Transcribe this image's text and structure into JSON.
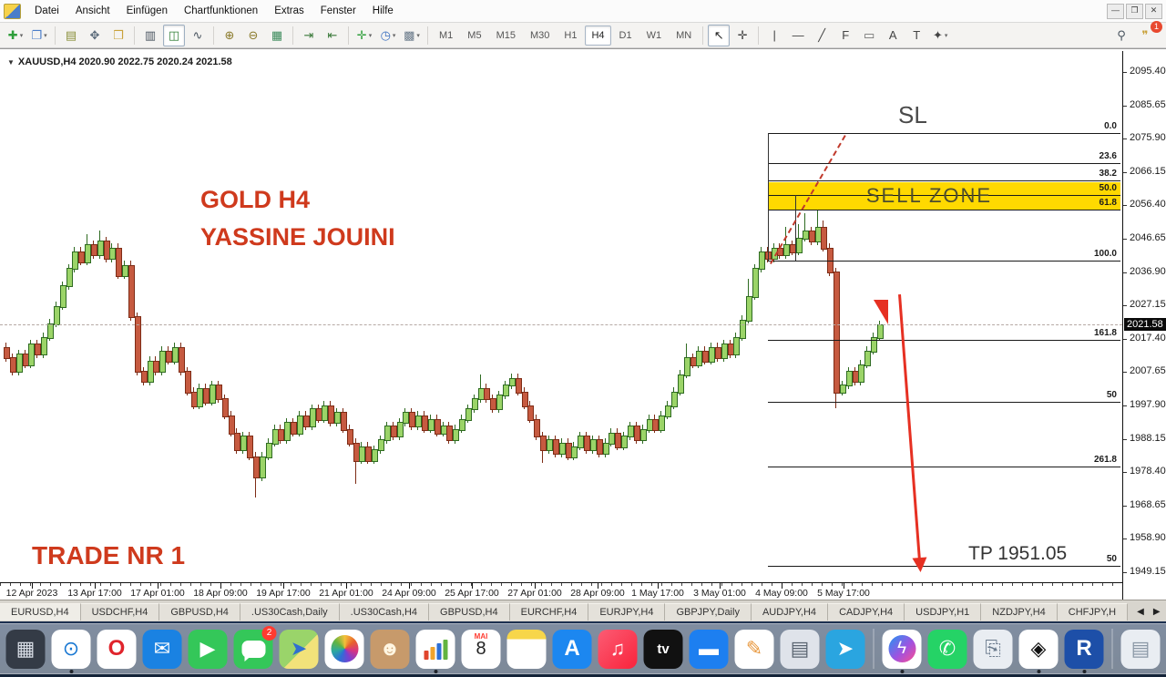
{
  "app": {
    "window_controls": [
      {
        "name": "minimize",
        "glyph": "—"
      },
      {
        "name": "restore",
        "glyph": "❐"
      },
      {
        "name": "close",
        "glyph": "✕"
      }
    ]
  },
  "menu": {
    "items": [
      "Datei",
      "Ansicht",
      "Einfügen",
      "Chartfunktionen",
      "Extras",
      "Fenster",
      "Hilfe"
    ]
  },
  "toolbar": {
    "buttons": [
      {
        "name": "new-chart",
        "glyph": "✚",
        "color": "#2e9e3a",
        "dd": true
      },
      {
        "name": "profiles",
        "glyph": "❐",
        "color": "#4a7dc9",
        "dd": true
      },
      {
        "sep": true
      },
      {
        "name": "market-watch",
        "glyph": "▤",
        "color": "#8a8f3a"
      },
      {
        "name": "navigator",
        "glyph": "✥",
        "color": "#5a6a7a"
      },
      {
        "name": "terminal",
        "glyph": "❒",
        "color": "#c9a23a"
      },
      {
        "sep": true
      },
      {
        "name": "bar-chart-mode",
        "glyph": "▥",
        "color": "#4a5560"
      },
      {
        "name": "candlestick-mode",
        "glyph": "◫",
        "color": "#2e7d32",
        "active": true
      },
      {
        "name": "line-chart-mode",
        "glyph": "∿",
        "color": "#4a5560"
      },
      {
        "sep": true
      },
      {
        "name": "zoom-in",
        "glyph": "⊕",
        "color": "#8a7a2a"
      },
      {
        "name": "zoom-out",
        "glyph": "⊖",
        "color": "#8a7a2a"
      },
      {
        "name": "tile-windows",
        "glyph": "▦",
        "color": "#3a8a5a"
      },
      {
        "sep": true
      },
      {
        "name": "auto-scroll",
        "glyph": "⇥",
        "color": "#3a7a3a"
      },
      {
        "name": "chart-shift",
        "glyph": "⇤",
        "color": "#3a7a3a"
      },
      {
        "sep": true
      },
      {
        "name": "indicators",
        "glyph": "✛",
        "color": "#2e9e3a",
        "dd": true
      },
      {
        "name": "periods",
        "glyph": "◷",
        "color": "#3a6fbf",
        "dd": true
      },
      {
        "name": "templates",
        "glyph": "▩",
        "color": "#6a7a8a",
        "dd": true
      },
      {
        "sep": true
      }
    ],
    "timeframes": [
      {
        "label": "M1"
      },
      {
        "label": "M5"
      },
      {
        "label": "M15"
      },
      {
        "label": "M30"
      },
      {
        "label": "H1"
      },
      {
        "label": "H4",
        "active": true
      },
      {
        "label": "D1"
      },
      {
        "label": "W1"
      },
      {
        "label": "MN"
      }
    ],
    "tools": [
      {
        "name": "cursor",
        "glyph": "↖",
        "color": "#222",
        "active": true
      },
      {
        "name": "crosshair",
        "glyph": "✛",
        "color": "#444"
      },
      {
        "sep": true
      },
      {
        "name": "vertical-line",
        "glyph": "|",
        "color": "#444"
      },
      {
        "name": "horizontal-line",
        "glyph": "—",
        "color": "#444"
      },
      {
        "name": "trendline",
        "glyph": "╱",
        "color": "#444"
      },
      {
        "name": "fibonacci",
        "glyph": "F",
        "color": "#444"
      },
      {
        "name": "label-object",
        "glyph": "▭",
        "color": "#666"
      },
      {
        "name": "text",
        "glyph": "A",
        "color": "#444"
      },
      {
        "name": "text-label",
        "glyph": "T",
        "color": "#444"
      },
      {
        "name": "arrow-objects",
        "glyph": "✦",
        "color": "#444",
        "dd": true
      }
    ],
    "search_glyph": "⚲",
    "chat_glyph": "❞",
    "chat_badge": "1"
  },
  "chart": {
    "symbol_line": "XAUUSD,H4  2020.90 2022.75 2020.24 2021.58",
    "price_badge": "2021.58",
    "annotations": {
      "title_line1": "GOLD H4",
      "title_line2": "YASSINE JOUINI",
      "trade_label": "TRADE NR 1",
      "sl_label": "SL",
      "tp_label": "TP 1951.05",
      "sell_zone_label": "SELL ZONE"
    },
    "colors": {
      "bull_fill": "#9bd468",
      "bull_border": "#2f6b22",
      "bear_fill": "#c65a40",
      "bear_border": "#7e2c16",
      "sell_zone": "#ffd900",
      "annotation_red": "#cf3a1d",
      "arrow_red": "#e63022"
    }
  },
  "chart_data": {
    "type": "candlestick",
    "title": "XAUUSD,H4",
    "current_bid": 2021.58,
    "ohlc_header": {
      "open": 2020.9,
      "high": 2022.75,
      "low": 2020.24,
      "close": 2021.58
    },
    "y_axis": {
      "top_label_price": 2095.4,
      "bottom_label_price": 1949.15,
      "step": 9.75,
      "labels": [
        "2095.40",
        "2085.65",
        "2075.90",
        "2066.15",
        "2056.40",
        "2046.65",
        "2036.90",
        "2027.15",
        "2017.40",
        "2007.65",
        "1997.90",
        "1988.15",
        "1978.40",
        "1968.65",
        "1958.90",
        "1949.15"
      ]
    },
    "x_axis": {
      "labels": [
        "12 Apr 2023",
        "13 Apr 17:00",
        "17 Apr 01:00",
        "18 Apr 09:00",
        "19 Apr 17:00",
        "21 Apr 01:00",
        "24 Apr 09:00",
        "25 Apr 17:00",
        "27 Apr 01:00",
        "28 Apr 09:00",
        "1 May 17:00",
        "3 May 01:00",
        "4 May 09:00",
        "5 May 17:00"
      ]
    },
    "fib_levels": [
      {
        "label": "0.0",
        "price": 2077.6
      },
      {
        "label": "23.6",
        "price": 2068.8
      },
      {
        "label": "38.2",
        "price": 2063.7
      },
      {
        "label": "50.0",
        "price": 2059.4
      },
      {
        "label": "61.8",
        "price": 2055.2
      },
      {
        "label": "100.0",
        "price": 2040.3
      },
      {
        "label": "161.8",
        "price": 2017.2
      },
      {
        "label": "50",
        "price": 1999.0
      },
      {
        "label": "261.8",
        "price": 1980.0
      },
      {
        "label": "50",
        "price": 1951.05
      }
    ],
    "sell_zone": {
      "top_price": 2063.2,
      "bottom_price": 2055.2
    },
    "open_first": 2015,
    "closes": [
      2012,
      2008,
      2013,
      2010,
      2016,
      2013,
      2018,
      2022,
      2027,
      2033,
      2038,
      2043,
      2040,
      2045,
      2042,
      2046,
      2041,
      2044,
      2036,
      2039,
      2024,
      2008,
      2005,
      2011,
      2008,
      2014,
      2011,
      2015,
      2008,
      2002,
      1998,
      2003,
      1999,
      2004,
      2000,
      1995,
      1990,
      1985,
      1989,
      1983,
      1977,
      1983,
      1987,
      1991,
      1988,
      1993,
      1990,
      1995,
      1992,
      1997,
      1994,
      1998,
      1993,
      1996,
      1991,
      1987,
      1982,
      1986,
      1982,
      1985,
      1988,
      1992,
      1989,
      1993,
      1996,
      1992,
      1995,
      1991,
      1994,
      1990,
      1992,
      1988,
      1991,
      1994,
      1997,
      2000,
      2003,
      2000,
      1997,
      2001,
      2004,
      2006,
      2002,
      1998,
      1994,
      1989,
      1985,
      1988,
      1984,
      1987,
      1983,
      1986,
      1989,
      1985,
      1988,
      1984,
      1987,
      1990,
      1986,
      1989,
      1992,
      1988,
      1991,
      1994,
      1991,
      1995,
      1998,
      2002,
      2007,
      2012,
      2010,
      2014,
      2011,
      2015,
      2012,
      2016,
      2013,
      2018,
      2023,
      2030,
      2038,
      2043,
      2041,
      2044,
      2042,
      2045,
      2043,
      2047,
      2049,
      2046,
      2050,
      2044,
      2037,
      2002,
      2004,
      2008,
      2005,
      2010,
      2014,
      2018,
      2021.6
    ],
    "wick_high": {
      "13": 2048,
      "15": 2049,
      "76": 2007,
      "109": 2016,
      "119": 2035,
      "125": 2050,
      "127": 2051,
      "128": 2054,
      "130": 2056,
      "131": 2052
    },
    "wick_low": {
      "40": 1971,
      "56": 1975,
      "86": 1981,
      "133": 1997
    }
  },
  "tabs": {
    "items": [
      "EURUSD,H4",
      "USDCHF,H4",
      "GBPUSD,H4",
      ".US30Cash,Daily",
      ".US30Cash,H4",
      "GBPUSD,H4",
      "EURCHF,H4",
      "EURJPY,H4",
      "GBPJPY,Daily",
      "AUDJPY,H4",
      "CADJPY,H4",
      "USDJPY,H1",
      "NZDJPY,H4",
      "CHFJPY,H"
    ],
    "scroll_left": "◀",
    "scroll_right": "▶"
  },
  "dock": {
    "apps": [
      {
        "name": "finder",
        "glyph": "☺",
        "bg": "#3f8ef0",
        "fg": "#fff",
        "dot": true
      },
      {
        "name": "launchpad",
        "glyph": "▦",
        "bg": "#343b46",
        "fg": "#d8dde6"
      },
      {
        "name": "safari",
        "glyph": "⊙",
        "bg": "#ffffff",
        "fg": "#1877d2",
        "dot": true
      },
      {
        "name": "opera",
        "glyph": "O",
        "bg": "#ffffff",
        "fg": "#e0242c"
      },
      {
        "name": "mail",
        "glyph": "✉",
        "bg": "#1a82e2",
        "fg": "#fff"
      },
      {
        "name": "facetime",
        "glyph": "▶",
        "bg": "#34c759",
        "fg": "#fff"
      },
      {
        "name": "messages",
        "special": "bubble",
        "bg": "#34c759",
        "badge": "2"
      },
      {
        "name": "maps",
        "glyph": "➤",
        "bg": "linear-gradient(135deg,#9ad46a 55%,#f2e27a 55%)",
        "fg": "#2f6fd0"
      },
      {
        "name": "photos",
        "special": "flower",
        "bg": "#ffffff"
      },
      {
        "name": "contacts",
        "glyph": "☻",
        "bg": "#c79a6b",
        "fg": "#fff6e2"
      },
      {
        "name": "numbers-chart",
        "special": "bars",
        "bg": "#ffffff",
        "dot": true,
        "bar_colors": [
          "#e0452c",
          "#f0a32c",
          "#2d6fd6",
          "#62b440"
        ]
      },
      {
        "name": "calendar",
        "special": "calendar",
        "bg": "#ffffff",
        "month": "MAI",
        "day": "8"
      },
      {
        "name": "notes",
        "glyph": "",
        "bg": "linear-gradient(#f7d64a 0 24%,#fff 24%)"
      },
      {
        "name": "app-store",
        "glyph": "A",
        "bg": "#1c87f0",
        "fg": "#fff"
      },
      {
        "name": "music",
        "glyph": "♫",
        "bg": "linear-gradient(135deg,#fb5c74,#fa233b)",
        "fg": "#fff"
      },
      {
        "name": "apple-tv",
        "glyph": "tv",
        "bg": "#111111",
        "fg": "#fff"
      },
      {
        "name": "keynote",
        "glyph": "▬",
        "bg": "#1d7ff0",
        "fg": "#fff"
      },
      {
        "name": "pages",
        "glyph": "✎",
        "bg": "#ffffff",
        "fg": "#e8963a"
      },
      {
        "name": "photo-booth",
        "glyph": "▤",
        "bg": "#dfe3ea",
        "fg": "#5a6470"
      },
      {
        "name": "telegram",
        "glyph": "➤",
        "bg": "#2aa5e0",
        "fg": "#fff"
      },
      {
        "sep": true
      },
      {
        "name": "messenger",
        "special": "mcircle",
        "glyph": "ϟ",
        "bg": "#ffffff",
        "dot": true
      },
      {
        "name": "whatsapp",
        "glyph": "✆",
        "bg": "#25d366",
        "fg": "#fff"
      },
      {
        "name": "utility-app",
        "glyph": "⎘",
        "bg": "#e9edf2",
        "fg": "#6b7b8d"
      },
      {
        "name": "diamond-app",
        "glyph": "◈",
        "bg": "#ffffff",
        "fg": "#111",
        "dot": true
      },
      {
        "name": "trading-app-r",
        "glyph": "R",
        "bg": "#1d4fa8",
        "fg": "#fff",
        "dot": true
      },
      {
        "sep": true
      },
      {
        "name": "downloads",
        "glyph": "▤",
        "bg": "#e9edf2",
        "fg": "#8a97a5"
      },
      {
        "name": "trash",
        "glyph": "▯",
        "bg": "#cfd6dd",
        "fg": "#8a929b"
      }
    ]
  }
}
